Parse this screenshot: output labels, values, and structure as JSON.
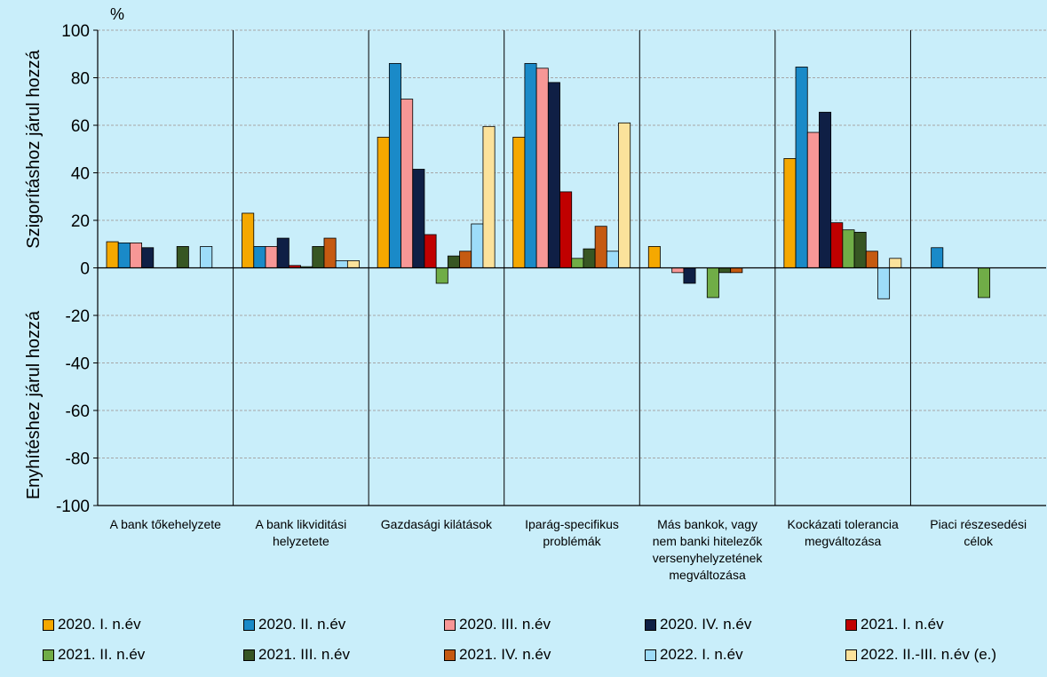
{
  "chart_data": {
    "type": "bar",
    "unit": "%",
    "ylabel_top": "Szigorításhoz járul hozzá",
    "ylabel_bottom": "Enyhítéshez járul hozzá",
    "ylim": [
      -100,
      100
    ],
    "yticks": [
      100,
      80,
      60,
      40,
      20,
      0,
      -20,
      -40,
      -60,
      -80,
      -100
    ],
    "grid": true,
    "legend_position": "bottom",
    "categories": [
      [
        "A bank tőkehelyzete"
      ],
      [
        "A bank likviditási",
        "helyzetete"
      ],
      [
        "Gazdasági kilátások"
      ],
      [
        "Iparág-specifikus",
        "problémák"
      ],
      [
        "Más bankok, vagy",
        "nem banki hitelezők",
        "versenyhelyzetének",
        "megváltozása"
      ],
      [
        "Kockázati tolerancia",
        "megváltozása"
      ],
      [
        "Piaci részesedési",
        "célok"
      ]
    ],
    "series": [
      {
        "name": "2020. I. n.év",
        "color": "#f5a800",
        "values": [
          11,
          23,
          55,
          55,
          9,
          46,
          0
        ]
      },
      {
        "name": "2020. II. n.év",
        "color": "#1a8ac8",
        "values": [
          10.5,
          9,
          86,
          86,
          0,
          84.5,
          8.5
        ]
      },
      {
        "name": "2020. III. n.év",
        "color": "#f79796",
        "values": [
          10.5,
          9,
          71,
          84,
          -2,
          57,
          0
        ]
      },
      {
        "name": "2020. IV. n.év",
        "color": "#0f1f45",
        "values": [
          8.5,
          12.5,
          41.5,
          78,
          -6.5,
          65.5,
          0
        ]
      },
      {
        "name": "2021. I. n.év",
        "color": "#c00000",
        "values": [
          0,
          1,
          14,
          32,
          0,
          19,
          0
        ]
      },
      {
        "name": "2021. II. n.év",
        "color": "#70ad47",
        "values": [
          0,
          0.5,
          -6.5,
          4,
          -12.5,
          16,
          -12.5
        ]
      },
      {
        "name": "2021. III. n.év",
        "color": "#375623",
        "values": [
          9,
          9,
          5,
          8,
          -2,
          15,
          0
        ]
      },
      {
        "name": "2021. IV. n.év",
        "color": "#c55a11",
        "values": [
          0,
          12.5,
          7,
          17.5,
          -2,
          7,
          0
        ]
      },
      {
        "name": "2022. I. n.év",
        "color": "#9ddcf9",
        "values": [
          9,
          3,
          18.5,
          7,
          0,
          -13,
          0
        ]
      },
      {
        "name": "2022. II.-III. n.év (e.)",
        "color": "#fbe29b",
        "values": [
          0,
          3,
          59.5,
          61,
          0,
          4,
          0
        ]
      }
    ]
  }
}
